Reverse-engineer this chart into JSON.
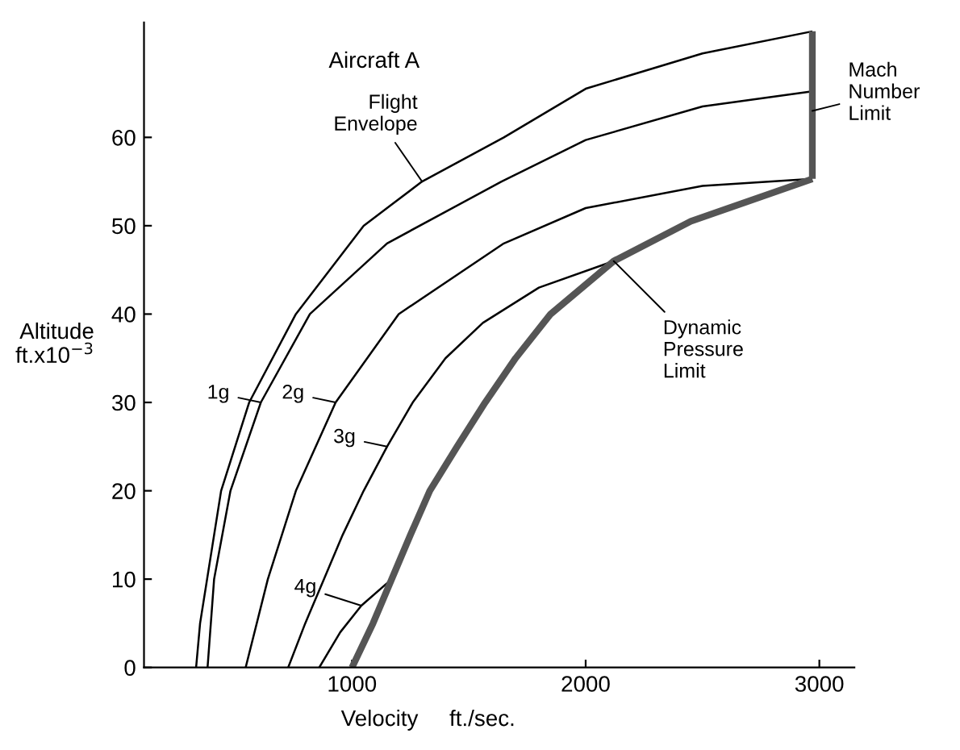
{
  "chart_data": {
    "type": "line",
    "xlabel": "Velocity     ft./sec.",
    "ylabel": "Altitude\nft.x10$^{−3}$",
    "xlim": [
      110,
      3150
    ],
    "ylim": [
      0,
      73
    ],
    "xticks": [
      1000,
      2000,
      3000
    ],
    "yticks": [
      0,
      10,
      20,
      30,
      40,
      50,
      60
    ],
    "grid": false,
    "marker": "none",
    "line_style": "solid",
    "series": [
      {
        "color": "#000000",
        "x": [
          333,
          350,
          380,
          440,
          560,
          760,
          1050,
          1300,
          1650,
          2000,
          2500,
          2970
        ],
        "values": [
          0,
          5,
          10,
          20,
          30,
          40,
          50,
          55,
          60,
          65.5,
          69.5,
          72
        ]
      },
      {
        "color": "#000000",
        "x": [
          382,
          410,
          480,
          610,
          820,
          1150,
          1640,
          2000,
          2500,
          2970
        ],
        "values": [
          0,
          10,
          20,
          30,
          40,
          48,
          55,
          59.7,
          63.5,
          65.2
        ]
      },
      {
        "color": "#000000",
        "x": [
          545,
          640,
          760,
          930,
          1200,
          1650,
          2000,
          2500,
          2970
        ],
        "values": [
          0,
          10,
          20,
          30,
          40,
          48,
          52,
          54.5,
          55.3
        ]
      },
      {
        "color": "#000000",
        "x": [
          727,
          800,
          880,
          960,
          1050,
          1150,
          1260,
          1400,
          1560,
          1800,
          2120
        ],
        "values": [
          0,
          5,
          10,
          15,
          20,
          25,
          30,
          35,
          39,
          43,
          46
        ]
      },
      {
        "color": "#000000",
        "x": [
          860,
          950,
          1040,
          1170
        ],
        "values": [
          0,
          4,
          7,
          10
        ]
      },
      {
        "color": "#555555",
        "x": [
          1000,
          1090,
          1170,
          1250,
          1333,
          1450,
          1570,
          1700,
          1850,
          2120,
          2450,
          2970
        ],
        "values": [
          0,
          5,
          10,
          15,
          20,
          25,
          30,
          35,
          40,
          46,
          50.5,
          55.3
        ]
      },
      {
        "color": "#555555",
        "x": [
          2970,
          2970
        ],
        "values": [
          55.3,
          72
        ]
      }
    ],
    "annotations": [
      "Aircraft A",
      {
        "text": "Flight\nEnvelope",
        "x": 1300,
        "y": 55
      },
      {
        "text": "Mach\nNumber\nLimit",
        "x": 2970,
        "y": 63
      },
      {
        "text": "Dynamic\nPressure\nLimit",
        "x": 2120,
        "y": 46
      },
      {
        "text": "1g",
        "x": 610,
        "y": 30
      },
      {
        "text": "2g",
        "x": 930,
        "y": 30
      },
      {
        "text": "3g",
        "x": 1150,
        "y": 25
      },
      {
        "text": "4g",
        "x": 1040,
        "y": 7
      }
    ]
  }
}
